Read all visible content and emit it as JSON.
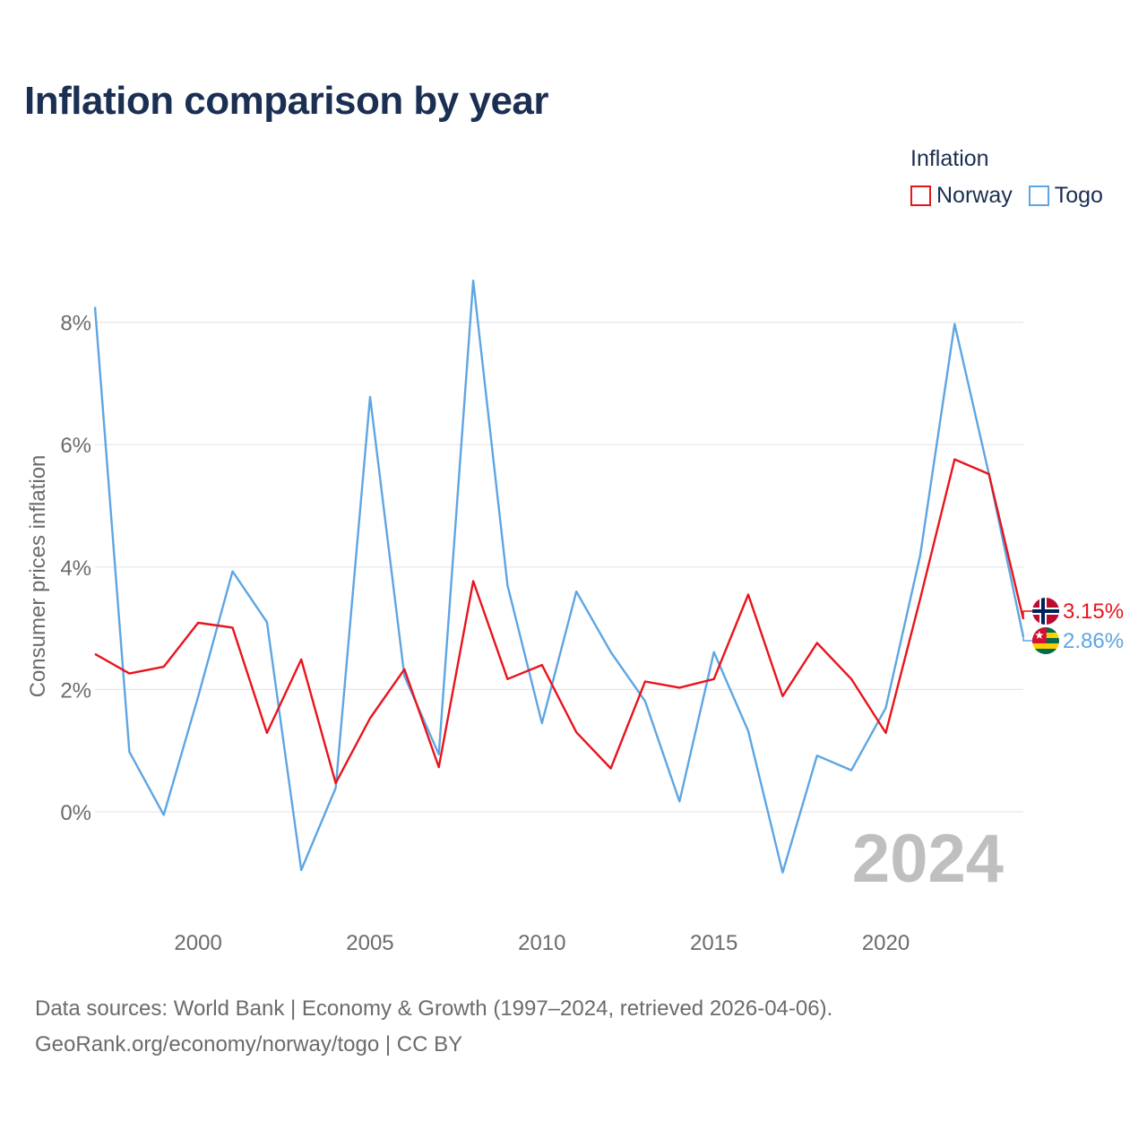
{
  "chart_data": {
    "type": "line",
    "title": "Inflation comparison by year",
    "legend_title": "Inflation",
    "legend_position": "top-right",
    "ylabel": "Consumer prices inflation",
    "xlabel": "",
    "xlim": [
      1997,
      2024
    ],
    "ylim": [
      -2.2,
      8.0
    ],
    "x_ticks": [
      2000,
      2005,
      2010,
      2015,
      2020
    ],
    "y_ticks": [
      0,
      2,
      4,
      6,
      8
    ],
    "y_tick_labels": [
      "0%",
      "2%",
      "4%",
      "6%",
      "8%"
    ],
    "grid": true,
    "year_watermark": "2024",
    "x": [
      1997,
      1998,
      1999,
      2000,
      2001,
      2002,
      2003,
      2004,
      2005,
      2006,
      2007,
      2008,
      2009,
      2010,
      2011,
      2012,
      2013,
      2014,
      2015,
      2016,
      2017,
      2018,
      2019,
      2020,
      2021,
      2022,
      2023,
      2024
    ],
    "series": [
      {
        "name": "Norway",
        "color": "#e8141c",
        "end_label": "3.15%",
        "flag": "norway-flag",
        "values": [
          2.58,
          2.26,
          2.37,
          3.09,
          3.01,
          1.29,
          2.49,
          0.47,
          1.53,
          2.33,
          0.73,
          3.77,
          2.17,
          2.4,
          1.3,
          0.71,
          2.13,
          2.03,
          2.17,
          3.55,
          1.89,
          2.76,
          2.17,
          1.29,
          3.48,
          5.76,
          5.52,
          3.15
        ]
      },
      {
        "name": "Togo",
        "color": "#5ea5e3",
        "end_label": "2.86%",
        "flag": "togo-flag",
        "values": [
          8.25,
          0.98,
          -0.05,
          1.88,
          3.93,
          3.1,
          -0.95,
          0.39,
          6.78,
          2.22,
          0.94,
          8.68,
          3.7,
          1.45,
          3.6,
          2.61,
          1.81,
          0.17,
          2.61,
          1.32,
          -0.99,
          0.92,
          0.68,
          1.7,
          4.19,
          7.97,
          5.52,
          2.86
        ]
      }
    ]
  },
  "footer": {
    "line1": "Data sources: World Bank | Economy & Growth (1997–2024, retrieved 2026-04-06).",
    "line2": "GeoRank.org/economy/norway/togo | CC BY"
  }
}
